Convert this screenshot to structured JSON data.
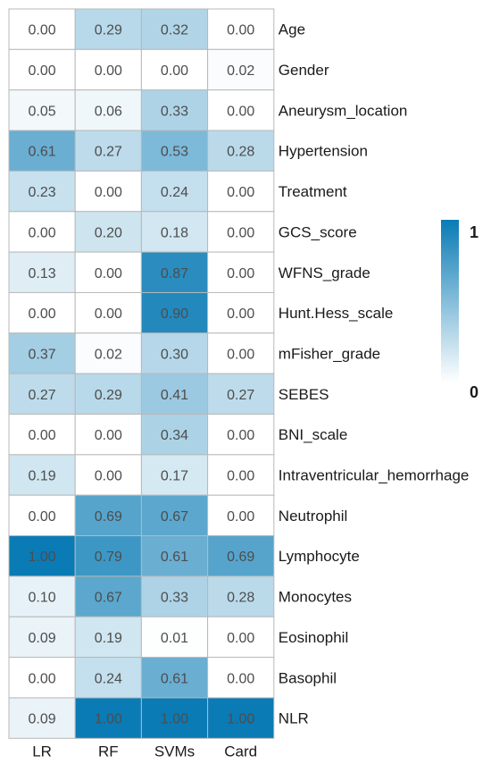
{
  "chart_data": {
    "type": "heatmap",
    "title": "",
    "columns": [
      "LR",
      "RF",
      "SVMs",
      "Card"
    ],
    "rows": [
      "Age",
      "Gender",
      "Aneurysm_location",
      "Hypertension",
      "Treatment",
      "GCS_score",
      "WFNS_grade",
      "Hunt.Hess_scale",
      "mFisher_grade",
      "SEBES",
      "BNI_scale",
      "Intraventricular_hemorrhage",
      "Neutrophil",
      "Lymphocyte",
      "Monocytes",
      "Eosinophil",
      "Basophil",
      "NLR"
    ],
    "values": [
      [
        0.0,
        0.29,
        0.32,
        0.0
      ],
      [
        0.0,
        0.0,
        0.0,
        0.02
      ],
      [
        0.05,
        0.06,
        0.33,
        0.0
      ],
      [
        0.61,
        0.27,
        0.53,
        0.28
      ],
      [
        0.23,
        0.0,
        0.24,
        0.0
      ],
      [
        0.0,
        0.2,
        0.18,
        0.0
      ],
      [
        0.13,
        0.0,
        0.87,
        0.0
      ],
      [
        0.0,
        0.0,
        0.9,
        0.0
      ],
      [
        0.37,
        0.02,
        0.3,
        0.0
      ],
      [
        0.27,
        0.29,
        0.41,
        0.27
      ],
      [
        0.0,
        0.0,
        0.34,
        0.0
      ],
      [
        0.19,
        0.0,
        0.17,
        0.0
      ],
      [
        0.0,
        0.69,
        0.67,
        0.0
      ],
      [
        1.0,
        0.79,
        0.61,
        0.69
      ],
      [
        0.1,
        0.67,
        0.33,
        0.28
      ],
      [
        0.09,
        0.19,
        0.01,
        0.0
      ],
      [
        0.0,
        0.24,
        0.61,
        0.0
      ],
      [
        0.09,
        1.0,
        1.0,
        1.0
      ]
    ],
    "legend": {
      "max_label": "1",
      "min_label": "0",
      "range": [
        0,
        1
      ],
      "placement": "right"
    },
    "colors": {
      "low": "#ffffff",
      "high": "#0a7bb5",
      "grid": "#b8b8b8"
    },
    "number_format": "2-decimals"
  }
}
